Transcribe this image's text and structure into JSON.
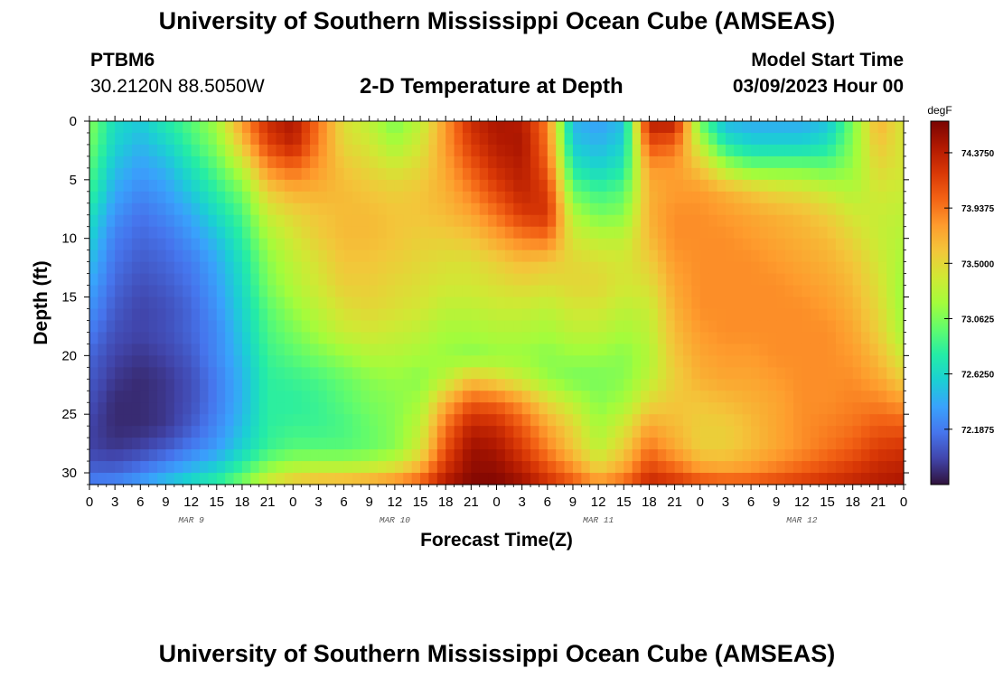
{
  "header": {
    "title": "University of Southern Mississippi Ocean Cube (AMSEAS)",
    "station_id": "PTBM6",
    "station_coords": "30.2120N  88.5050W",
    "plot_title": "2-D Temperature at Depth",
    "model_start_label": "Model Start Time",
    "model_start_value": "03/09/2023 Hour 00"
  },
  "footer": {
    "title": "University of Southern Mississippi Ocean Cube (AMSEAS)"
  },
  "chart_data": {
    "type": "heatmap",
    "title": "2-D Temperature at Depth",
    "xlabel": "Forecast Time(Z)",
    "ylabel": "Depth (ft)",
    "x_hours": [
      0,
      3,
      6,
      9,
      12,
      15,
      18,
      21,
      24,
      27,
      30,
      33,
      36,
      39,
      42,
      45,
      48,
      51,
      54,
      57,
      60,
      63,
      66,
      69,
      72,
      75,
      78,
      81,
      84,
      87,
      90,
      93,
      96
    ],
    "x_tick_labels": [
      "0",
      "3",
      "6",
      "9",
      "12",
      "15",
      "18",
      "21",
      "0",
      "3",
      "6",
      "9",
      "12",
      "15",
      "18",
      "21",
      "0",
      "3",
      "6",
      "9",
      "12",
      "15",
      "18",
      "21",
      "0",
      "3",
      "6",
      "9",
      "12",
      "15",
      "18",
      "21",
      "0"
    ],
    "date_labels": [
      {
        "label": "MAR 9",
        "hour": 12
      },
      {
        "label": "MAR 10",
        "hour": 36
      },
      {
        "label": "MAR 11",
        "hour": 60
      },
      {
        "label": "MAR 12",
        "hour": 84
      }
    ],
    "depth_ft": [
      0,
      2,
      4,
      6,
      8,
      10,
      12,
      14,
      16,
      18,
      20,
      22,
      24,
      26,
      28,
      30,
      31
    ],
    "y_ticks": [
      0,
      5,
      10,
      15,
      20,
      25,
      30
    ],
    "ylim": [
      0,
      31
    ],
    "xlim": [
      0,
      96
    ],
    "y_inverted": true,
    "values_degF": [
      [
        73.1,
        72.65,
        72.55,
        72.75,
        72.95,
        73.2,
        73.8,
        74.3,
        74.45,
        73.95,
        73.45,
        73.3,
        73.05,
        73.3,
        73.8,
        74.3,
        74.45,
        74.4,
        73.9,
        72.45,
        72.35,
        72.5,
        74.4,
        74.4,
        73.0,
        72.45,
        72.4,
        72.4,
        72.4,
        72.5,
        73.05,
        73.7,
        73.4
      ],
      [
        73.05,
        72.6,
        72.45,
        72.6,
        72.85,
        73.1,
        73.6,
        74.15,
        74.35,
        73.9,
        73.5,
        73.4,
        73.2,
        73.4,
        73.8,
        74.2,
        74.4,
        74.45,
        73.95,
        72.55,
        72.45,
        72.6,
        74.1,
        74.0,
        73.3,
        72.75,
        72.6,
        72.6,
        72.6,
        72.7,
        73.1,
        73.6,
        73.4
      ],
      [
        72.95,
        72.5,
        72.35,
        72.45,
        72.7,
        72.95,
        73.3,
        73.85,
        74.0,
        73.8,
        73.6,
        73.5,
        73.4,
        73.5,
        73.75,
        74.05,
        74.3,
        74.4,
        74.05,
        72.75,
        72.6,
        72.75,
        73.8,
        73.8,
        73.6,
        73.25,
        73.05,
        73.05,
        73.05,
        73.0,
        73.15,
        73.5,
        73.4
      ],
      [
        72.85,
        72.4,
        72.25,
        72.35,
        72.55,
        72.8,
        73.05,
        73.55,
        73.7,
        73.7,
        73.65,
        73.6,
        73.55,
        73.6,
        73.7,
        73.9,
        74.15,
        74.35,
        74.2,
        73.0,
        72.85,
        72.95,
        73.7,
        73.8,
        73.8,
        73.7,
        73.6,
        73.5,
        73.45,
        73.35,
        73.25,
        73.4,
        73.35
      ],
      [
        72.7,
        72.3,
        72.15,
        72.25,
        72.4,
        72.65,
        72.9,
        73.35,
        73.5,
        73.6,
        73.65,
        73.65,
        73.6,
        73.6,
        73.65,
        73.75,
        73.95,
        74.2,
        74.25,
        73.25,
        73.05,
        73.1,
        73.7,
        73.85,
        73.85,
        73.8,
        73.75,
        73.7,
        73.65,
        73.55,
        73.4,
        73.35,
        73.3
      ],
      [
        72.6,
        72.2,
        72.1,
        72.15,
        72.3,
        72.5,
        72.8,
        73.2,
        73.4,
        73.55,
        73.65,
        73.65,
        73.6,
        73.55,
        73.55,
        73.6,
        73.75,
        73.9,
        73.95,
        73.4,
        73.3,
        73.3,
        73.65,
        73.85,
        73.85,
        73.85,
        73.8,
        73.75,
        73.7,
        73.65,
        73.5,
        73.35,
        73.25
      ],
      [
        72.5,
        72.15,
        72.05,
        72.1,
        72.2,
        72.4,
        72.7,
        73.1,
        73.3,
        73.45,
        73.6,
        73.6,
        73.55,
        73.5,
        73.45,
        73.45,
        73.55,
        73.65,
        73.6,
        73.5,
        73.45,
        73.4,
        73.55,
        73.8,
        73.85,
        73.85,
        73.85,
        73.8,
        73.75,
        73.7,
        73.6,
        73.4,
        73.2
      ],
      [
        72.4,
        72.1,
        72.0,
        72.05,
        72.15,
        72.35,
        72.65,
        73.05,
        73.25,
        73.4,
        73.55,
        73.55,
        73.5,
        73.45,
        73.4,
        73.4,
        73.45,
        73.5,
        73.45,
        73.5,
        73.5,
        73.4,
        73.45,
        73.75,
        73.85,
        73.85,
        73.85,
        73.85,
        73.8,
        73.75,
        73.65,
        73.45,
        73.15
      ],
      [
        72.3,
        72.05,
        71.95,
        72.0,
        72.1,
        72.3,
        72.6,
        72.95,
        73.15,
        73.3,
        73.45,
        73.5,
        73.45,
        73.4,
        73.3,
        73.3,
        73.35,
        73.35,
        73.3,
        73.4,
        73.4,
        73.3,
        73.35,
        73.7,
        73.85,
        73.85,
        73.85,
        73.85,
        73.85,
        73.8,
        73.7,
        73.5,
        73.15
      ],
      [
        72.2,
        72.0,
        71.95,
        72.0,
        72.1,
        72.25,
        72.55,
        72.9,
        73.05,
        73.2,
        73.35,
        73.4,
        73.35,
        73.3,
        73.2,
        73.2,
        73.25,
        73.25,
        73.2,
        73.3,
        73.3,
        73.2,
        73.3,
        73.65,
        73.8,
        73.85,
        73.85,
        73.85,
        73.85,
        73.85,
        73.75,
        73.55,
        73.2
      ],
      [
        72.1,
        71.95,
        71.9,
        71.95,
        72.05,
        72.25,
        72.5,
        72.85,
        72.95,
        73.05,
        73.15,
        73.25,
        73.25,
        73.2,
        73.15,
        73.1,
        73.15,
        73.15,
        73.1,
        73.15,
        73.15,
        73.1,
        73.25,
        73.6,
        73.75,
        73.8,
        73.8,
        73.85,
        73.85,
        73.85,
        73.8,
        73.65,
        73.35
      ],
      [
        72.05,
        71.9,
        71.85,
        71.9,
        72.0,
        72.2,
        72.45,
        72.8,
        72.85,
        72.9,
        73.0,
        73.1,
        73.15,
        73.1,
        73.3,
        73.6,
        73.5,
        73.35,
        73.15,
        73.05,
        73.05,
        73.1,
        73.3,
        73.55,
        73.7,
        73.75,
        73.75,
        73.8,
        73.85,
        73.85,
        73.85,
        73.75,
        73.55
      ],
      [
        72.0,
        71.85,
        71.85,
        71.9,
        72.0,
        72.2,
        72.45,
        72.8,
        72.8,
        72.85,
        72.95,
        73.05,
        73.1,
        73.2,
        73.7,
        74.05,
        74.0,
        73.8,
        73.5,
        73.3,
        73.1,
        73.2,
        73.5,
        73.6,
        73.6,
        73.65,
        73.7,
        73.75,
        73.85,
        73.85,
        73.9,
        73.9,
        73.8
      ],
      [
        71.95,
        71.85,
        71.85,
        71.9,
        72.05,
        72.25,
        72.5,
        72.8,
        72.85,
        72.85,
        72.9,
        73.0,
        73.1,
        73.3,
        73.95,
        74.35,
        74.3,
        74.05,
        73.75,
        73.5,
        73.2,
        73.4,
        73.75,
        73.65,
        73.55,
        73.55,
        73.65,
        73.75,
        73.85,
        73.9,
        73.95,
        74.05,
        74.05
      ],
      [
        71.95,
        71.9,
        71.95,
        72.05,
        72.2,
        72.35,
        72.6,
        72.85,
        72.95,
        72.95,
        72.95,
        73.0,
        73.1,
        73.4,
        74.1,
        74.5,
        74.45,
        74.2,
        73.9,
        73.6,
        73.3,
        73.55,
        73.95,
        73.75,
        73.55,
        73.55,
        73.65,
        73.75,
        73.85,
        73.95,
        74.05,
        74.2,
        74.25
      ],
      [
        72.1,
        72.1,
        72.2,
        72.35,
        72.5,
        72.65,
        72.9,
        73.2,
        73.35,
        73.4,
        73.4,
        73.45,
        73.55,
        73.8,
        74.3,
        74.55,
        74.55,
        74.4,
        74.15,
        73.9,
        73.6,
        73.8,
        74.2,
        74.05,
        73.85,
        73.8,
        73.85,
        73.95,
        74.05,
        74.15,
        74.25,
        74.35,
        74.4
      ],
      [
        72.25,
        72.3,
        72.4,
        72.55,
        72.7,
        72.85,
        73.1,
        73.45,
        73.65,
        73.75,
        73.8,
        73.85,
        73.95,
        74.1,
        74.45,
        74.6,
        74.6,
        74.5,
        74.3,
        74.1,
        73.9,
        74.05,
        74.35,
        74.3,
        74.2,
        74.15,
        74.15,
        74.2,
        74.25,
        74.3,
        74.35,
        74.4,
        74.45
      ]
    ],
    "colorbar": {
      "unit": "degF",
      "tick_labels": [
        "74.3750",
        "73.9375",
        "73.5000",
        "73.0625",
        "72.6250",
        "72.1875"
      ],
      "tick_values": [
        74.375,
        73.9375,
        73.5,
        73.0625,
        72.625,
        72.1875
      ],
      "range": [
        71.75,
        74.625
      ]
    },
    "colormap": [
      "#30123b",
      "#4145ab",
      "#4675ed",
      "#39a2fc",
      "#1bcfd4",
      "#24eca6",
      "#61fc6c",
      "#a4fc3b",
      "#d1e834",
      "#f3c63a",
      "#fe9b2d",
      "#f36315",
      "#d93806",
      "#b11901",
      "#7a0402"
    ]
  }
}
